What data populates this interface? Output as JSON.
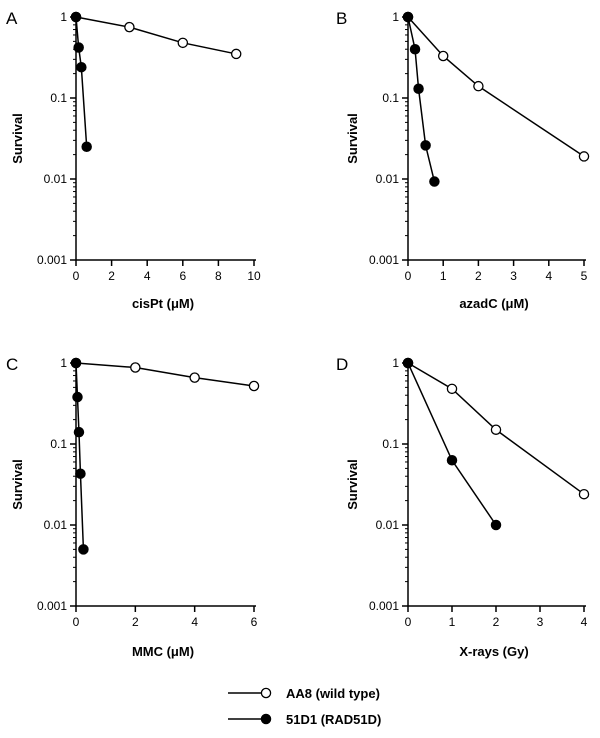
{
  "chart_data": [
    {
      "type": "line",
      "panel": "A",
      "xlabel": "cisPt (μM)",
      "ylabel": "Survival",
      "xlim": [
        0,
        10
      ],
      "xticks": [
        0,
        2,
        4,
        6,
        8,
        10
      ],
      "ylim": [
        0.001,
        1
      ],
      "yscale": "log",
      "yticks": [
        1,
        0.1,
        0.01,
        0.001
      ],
      "ytick_labels": [
        "1",
        "0.1",
        "0.01",
        "0.001"
      ],
      "series": [
        {
          "name": "AA8 (wild type)",
          "marker": "open-circle",
          "x": [
            0,
            3,
            6,
            9
          ],
          "y": [
            1,
            0.75,
            0.48,
            0.35
          ]
        },
        {
          "name": "51D1 (RAD51D)",
          "marker": "filled-circle",
          "x": [
            0,
            0.15,
            0.3,
            0.6
          ],
          "y": [
            1,
            0.42,
            0.24,
            0.025
          ]
        }
      ]
    },
    {
      "type": "line",
      "panel": "B",
      "xlabel": "azadC (μM)",
      "ylabel": "Survival",
      "xlim": [
        0,
        5
      ],
      "xticks": [
        0,
        1,
        2,
        3,
        4,
        5
      ],
      "ylim": [
        0.001,
        1
      ],
      "yscale": "log",
      "yticks": [
        1,
        0.1,
        0.01,
        0.001
      ],
      "ytick_labels": [
        "1",
        "0.1",
        "0.01",
        "0.001"
      ],
      "series": [
        {
          "name": "AA8 (wild type)",
          "marker": "open-circle",
          "x": [
            0,
            1,
            2,
            5
          ],
          "y": [
            1,
            0.33,
            0.14,
            0.019
          ]
        },
        {
          "name": "51D1 (RAD51D)",
          "marker": "filled-circle",
          "x": [
            0,
            0.2,
            0.3,
            0.5,
            0.75
          ],
          "y": [
            1,
            0.4,
            0.13,
            0.026,
            0.0093
          ]
        }
      ]
    },
    {
      "type": "line",
      "panel": "C",
      "xlabel": "MMC (μM)",
      "ylabel": "Survival",
      "xlim": [
        0,
        6
      ],
      "xticks": [
        0,
        2,
        4,
        6
      ],
      "ylim": [
        0.001,
        1
      ],
      "yscale": "log",
      "yticks": [
        1,
        0.1,
        0.01,
        0.001
      ],
      "ytick_labels": [
        "1",
        "0.1",
        "0.01",
        "0.001"
      ],
      "series": [
        {
          "name": "AA8 (wild type)",
          "marker": "open-circle",
          "x": [
            0,
            2,
            4,
            6
          ],
          "y": [
            1,
            0.88,
            0.66,
            0.52
          ]
        },
        {
          "name": "51D1 (RAD51D)",
          "marker": "filled-circle",
          "x": [
            0,
            0.05,
            0.1,
            0.15,
            0.25
          ],
          "y": [
            1,
            0.38,
            0.14,
            0.043,
            0.005
          ]
        }
      ]
    },
    {
      "type": "line",
      "panel": "D",
      "xlabel": "X-rays (Gy)",
      "ylabel": "Survival",
      "xlim": [
        0,
        4
      ],
      "xticks": [
        0,
        1,
        2,
        3,
        4
      ],
      "ylim": [
        0.001,
        1
      ],
      "yscale": "log",
      "yticks": [
        1,
        0.1,
        0.01,
        0.001
      ],
      "ytick_labels": [
        "1",
        "0.1",
        "0.01",
        "0.001"
      ],
      "series": [
        {
          "name": "AA8 (wild type)",
          "marker": "open-circle",
          "x": [
            0,
            1,
            2,
            4
          ],
          "y": [
            1,
            0.48,
            0.15,
            0.024
          ]
        },
        {
          "name": "51D1 (RAD51D)",
          "marker": "filled-circle",
          "x": [
            0,
            1,
            2
          ],
          "y": [
            1,
            0.063,
            0.01
          ]
        }
      ]
    }
  ],
  "legend": {
    "placement": "bottom-center",
    "items": [
      {
        "label": "AA8 (wild type)",
        "marker": "open-circle"
      },
      {
        "label": "51D1 (RAD51D)",
        "marker": "filled-circle"
      }
    ]
  },
  "colors": {
    "line": "#000000",
    "open_fill": "#ffffff",
    "filled_fill": "#000000"
  }
}
